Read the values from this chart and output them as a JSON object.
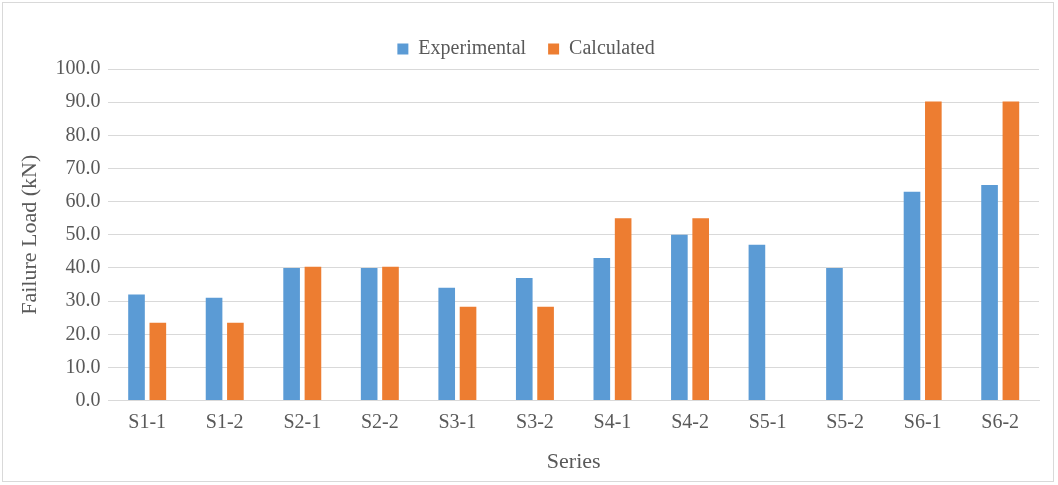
{
  "chart_data": {
    "type": "bar",
    "xlabel": "Series",
    "ylabel": "Failure Load (kN)",
    "categories": [
      "S1-1",
      "S1-2",
      "S2-1",
      "S2-2",
      "S3-1",
      "S3-2",
      "S4-1",
      "S4-2",
      "S5-1",
      "S5-2",
      "S6-1",
      "S6-2"
    ],
    "series": [
      {
        "name": "Experimental",
        "color": "#5b9bd5",
        "values": [
          32,
          31,
          40,
          40,
          34,
          37,
          43,
          50,
          47,
          40,
          63,
          65
        ]
      },
      {
        "name": "Calculated",
        "color": "#ed7d31",
        "values": [
          23.5,
          23.5,
          40.4,
          40.4,
          28.3,
          28.3,
          55,
          55,
          null,
          null,
          90.2,
          90.2
        ]
      }
    ],
    "ylim": [
      0,
      100
    ],
    "yticks": [
      {
        "value": 0,
        "label": "0.0"
      },
      {
        "value": 10,
        "label": "10.0"
      },
      {
        "value": 20,
        "label": "20.0"
      },
      {
        "value": 30,
        "label": "30.0"
      },
      {
        "value": 40,
        "label": "40.0"
      },
      {
        "value": 50,
        "label": "50.0"
      },
      {
        "value": 60,
        "label": "60.0"
      },
      {
        "value": 70,
        "label": "70.0"
      },
      {
        "value": 80,
        "label": "80.0"
      },
      {
        "value": 90,
        "label": "90.0"
      },
      {
        "value": 100,
        "label": "100.0"
      }
    ],
    "grid": "y",
    "legend": "top"
  }
}
